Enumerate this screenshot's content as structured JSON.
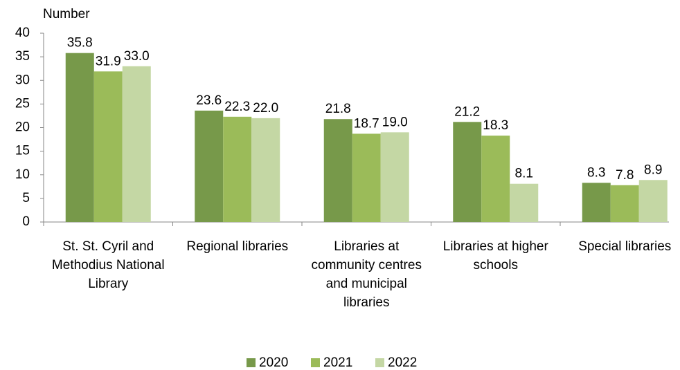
{
  "chart_data": {
    "type": "bar",
    "y_label": "Number",
    "categories": [
      "St. St. Cyril and Methodius National Library",
      "Regional libraries",
      "Libraries at community centres and municipal libraries",
      "Libraries at higher schools",
      "Special libraries"
    ],
    "series": [
      {
        "name": "2020",
        "color": "#77994a",
        "values": [
          35.8,
          23.6,
          21.8,
          21.2,
          8.3
        ],
        "value_labels": [
          "35.8",
          "23.6",
          "21.8",
          "21.2",
          "8.3"
        ]
      },
      {
        "name": "2021",
        "color": "#9bbb59",
        "values": [
          31.9,
          22.3,
          18.7,
          18.3,
          7.8
        ],
        "value_labels": [
          "31.9",
          "22.3",
          "18.7",
          "18.3",
          "7.8"
        ]
      },
      {
        "name": "2022",
        "color": "#c4d7a4",
        "values": [
          33,
          22,
          19,
          8.1,
          8.9
        ],
        "value_labels": [
          "33.0",
          "22.0",
          "19.0",
          "8.1",
          "8.9"
        ]
      }
    ],
    "ylim": [
      0,
      40
    ],
    "yticks": [
      0,
      5,
      10,
      15,
      20,
      25,
      30,
      35,
      40
    ]
  }
}
